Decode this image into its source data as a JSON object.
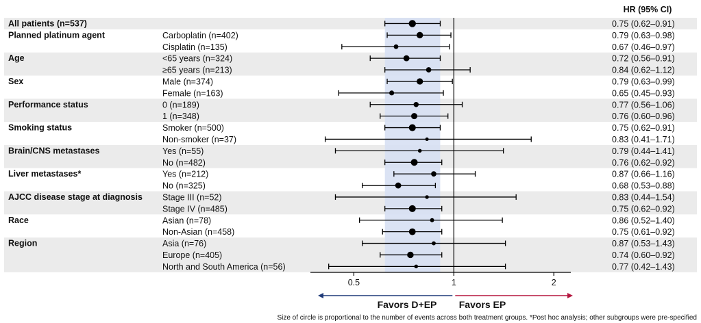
{
  "chart_data": {
    "type": "forest",
    "hr_column_title": "HR (95%  CI)",
    "x_axis": {
      "scale": "log",
      "range": [
        0.37,
        2.25
      ],
      "ticks": [
        "0.5",
        "1",
        "2"
      ],
      "tick_values": [
        0.5,
        1,
        2
      ],
      "reference_line": 1
    },
    "shaded_band": {
      "from": 0.62,
      "to": 0.91,
      "color": "#d7e0f3"
    },
    "row_band_color": "#ebebeb",
    "groups": [
      {
        "label": "All patients (n=537)",
        "shaded": true,
        "rows": [
          {
            "sub": "",
            "hr": 0.75,
            "lo": 0.62,
            "hi": 0.91,
            "text": "0.75 (0.62–0.91)",
            "n": 537
          }
        ]
      },
      {
        "label": "Planned platinum agent",
        "shaded": false,
        "rows": [
          {
            "sub": "Carboplatin (n=402)",
            "hr": 0.79,
            "lo": 0.63,
            "hi": 0.98,
            "text": "0.79 (0.63–0.98)",
            "n": 402
          },
          {
            "sub": "Cisplatin (n=135)",
            "hr": 0.67,
            "lo": 0.46,
            "hi": 0.97,
            "text": "0.67 (0.46–0.97)",
            "n": 135
          }
        ]
      },
      {
        "label": "Age",
        "shaded": true,
        "rows": [
          {
            "sub": "<65 years (n=324)",
            "hr": 0.72,
            "lo": 0.56,
            "hi": 0.91,
            "text": "0.72 (0.56–0.91)",
            "n": 324
          },
          {
            "sub": "≥65 years (n=213)",
            "hr": 0.84,
            "lo": 0.62,
            "hi": 1.12,
            "text": "0.84 (0.62–1.12)",
            "n": 213
          }
        ]
      },
      {
        "label": "Sex",
        "shaded": false,
        "rows": [
          {
            "sub": "Male (n=374)",
            "hr": 0.79,
            "lo": 0.63,
            "hi": 0.99,
            "text": "0.79 (0.63–0.99)",
            "n": 374
          },
          {
            "sub": "Female (n=163)",
            "hr": 0.65,
            "lo": 0.45,
            "hi": 0.93,
            "text": "0.65 (0.45–0.93)",
            "n": 163
          }
        ]
      },
      {
        "label": "Performance status",
        "shaded": true,
        "rows": [
          {
            "sub": "0 (n=189)",
            "hr": 0.77,
            "lo": 0.56,
            "hi": 1.06,
            "text": "0.77 (0.56–1.06)",
            "n": 189
          },
          {
            "sub": "1 (n=348)",
            "hr": 0.76,
            "lo": 0.6,
            "hi": 0.96,
            "text": "0.76 (0.60–0.96)",
            "n": 348
          }
        ]
      },
      {
        "label": "Smoking status",
        "shaded": false,
        "rows": [
          {
            "sub": "Smoker (n=500)",
            "hr": 0.75,
            "lo": 0.62,
            "hi": 0.91,
            "text": "0.75 (0.62–0.91)",
            "n": 500
          },
          {
            "sub": "Non-smoker (n=37)",
            "hr": 0.83,
            "lo": 0.41,
            "hi": 1.71,
            "text": "0.83 (0.41–1.71)",
            "n": 37
          }
        ]
      },
      {
        "label": "Brain/CNS metastases",
        "shaded": true,
        "rows": [
          {
            "sub": "Yes (n=55)",
            "hr": 0.79,
            "lo": 0.44,
            "hi": 1.41,
            "text": "0.79 (0.44–1.41)",
            "n": 55
          },
          {
            "sub": "No (n=482)",
            "hr": 0.76,
            "lo": 0.62,
            "hi": 0.92,
            "text": "0.76 (0.62–0.92)",
            "n": 482
          }
        ]
      },
      {
        "label": "Liver metastases*",
        "shaded": false,
        "rows": [
          {
            "sub": "Yes (n=212)",
            "hr": 0.87,
            "lo": 0.66,
            "hi": 1.16,
            "text": "0.87 (0.66–1.16)",
            "n": 212
          },
          {
            "sub": "No (n=325)",
            "hr": 0.68,
            "lo": 0.53,
            "hi": 0.88,
            "text": "0.68 (0.53–0.88)",
            "n": 325
          }
        ]
      },
      {
        "label": "AJCC disease stage at diagnosis",
        "shaded": true,
        "rows": [
          {
            "sub": "Stage III (n=52)",
            "hr": 0.83,
            "lo": 0.44,
            "hi": 1.54,
            "text": "0.83 (0.44–1.54)",
            "n": 52
          },
          {
            "sub": "Stage IV (n=485)",
            "hr": 0.75,
            "lo": 0.62,
            "hi": 0.92,
            "text": "0.75 (0.62–0.92)",
            "n": 485
          }
        ]
      },
      {
        "label": "Race",
        "shaded": false,
        "rows": [
          {
            "sub": "Asian (n=78)",
            "hr": 0.86,
            "lo": 0.52,
            "hi": 1.4,
            "text": "0.86 (0.52–1.40)",
            "n": 78
          },
          {
            "sub": "Non-Asian (n=458)",
            "hr": 0.75,
            "lo": 0.61,
            "hi": 0.92,
            "text": "0.75 (0.61–0.92)",
            "n": 458
          }
        ]
      },
      {
        "label": "Region",
        "shaded": true,
        "rows": [
          {
            "sub": "Asia (n=76)",
            "hr": 0.87,
            "lo": 0.53,
            "hi": 1.43,
            "text": "0.87 (0.53–1.43)",
            "n": 76
          },
          {
            "sub": "Europe (n=405)",
            "hr": 0.74,
            "lo": 0.6,
            "hi": 0.92,
            "text": "0.74 (0.60–0.92)",
            "n": 405
          },
          {
            "sub": "North and South America (n=56)",
            "hr": 0.77,
            "lo": 0.42,
            "hi": 1.43,
            "text": "0.77 (0.42–1.43)",
            "n": 56
          }
        ]
      }
    ],
    "favors_left": {
      "text": "Favors D+EP",
      "color": "#1f3a78"
    },
    "favors_right": {
      "text": "Favors EP",
      "color": "#b5173f"
    },
    "footnote": "Size of circle is proportional to the number of events across both treatment groups. *Post hoc analysis; other subgroups were pre-specified"
  }
}
